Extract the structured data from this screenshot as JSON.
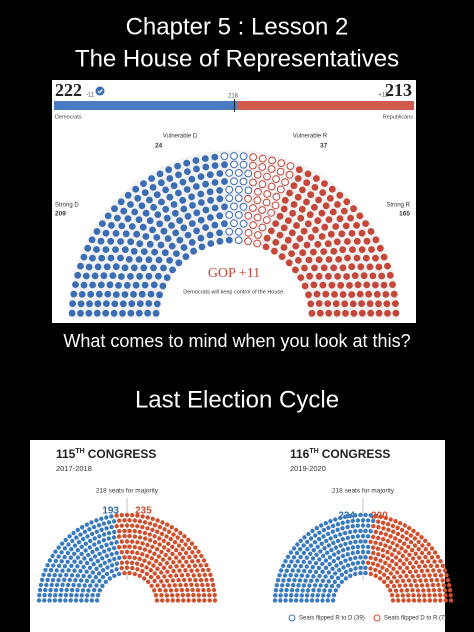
{
  "header": {
    "line1": "Chapter 5 : Lesson 2",
    "line2": "The House of Representatives"
  },
  "top_graphic": {
    "dem_total": 222,
    "dem_change": "-11",
    "majority": 218,
    "rep_change": "+11",
    "rep_total": 213,
    "dem_label": "Democrats",
    "rep_label": "Republicans",
    "vulnerable_d_label": "Vulnerable D",
    "vulnerable_d": 24,
    "vulnerable_r_label": "Vulnerable R",
    "vulnerable_r": 37,
    "strong_d_label": "Strong D",
    "strong_d": 209,
    "strong_r_label": "Strong R",
    "strong_r": 165,
    "headline": "GOP +11",
    "subhead": "Democrats will keep control of the House."
  },
  "question": "What comes to mind when you look at this?",
  "section_title": "Last Election Cycle",
  "congresses": [
    {
      "number": "115",
      "suffix": "TH",
      "name": "CONGRESS",
      "years": "2017-2018",
      "majority_note": "218 seats for majority",
      "dem": 193,
      "rep": 235
    },
    {
      "number": "116",
      "suffix": "TH",
      "name": "CONGRESS",
      "years": "2019-2020",
      "majority_note": "218 seats for majority",
      "dem": 234,
      "rep": 200
    }
  ],
  "legend": [
    "Seats flipped R to D (39)",
    "Seats flipped D to R (7)"
  ]
}
